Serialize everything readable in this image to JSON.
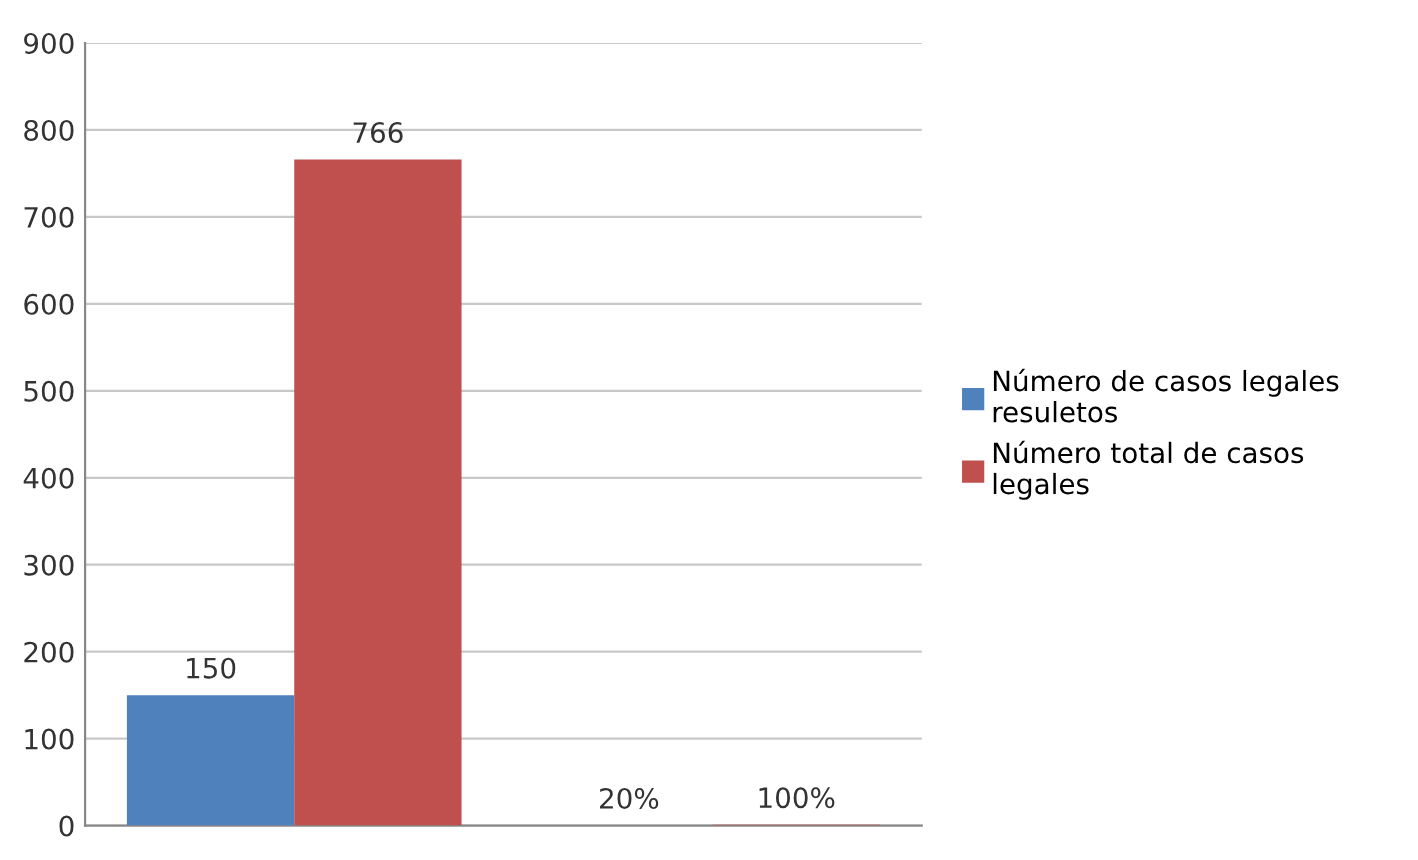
{
  "chart_data": {
    "type": "bar",
    "categories": [
      null,
      null
    ],
    "series": [
      {
        "name": "Número de casos legales\nresuletos",
        "color": "#4f81bd",
        "values": [
          150,
          0.2
        ],
        "value_labels": [
          "150",
          "20%"
        ]
      },
      {
        "name": "Número total de casos\nlegales",
        "color": "#c0504d",
        "values": [
          766,
          1
        ],
        "value_labels": [
          "766",
          "100%"
        ]
      }
    ],
    "ylim": [
      0,
      900
    ],
    "yticks": [
      0,
      100,
      200,
      300,
      400,
      500,
      600,
      700,
      800,
      900
    ],
    "grid": "y",
    "legend": "right"
  }
}
